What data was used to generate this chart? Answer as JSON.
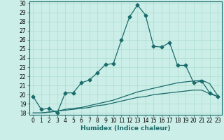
{
  "xlabel": "Humidex (Indice chaleur)",
  "background_color": "#cceee8",
  "grid_color": "#aaddcc",
  "line_color": "#1a6b6b",
  "xlim": [
    -0.5,
    23.5
  ],
  "ylim": [
    17.8,
    30.2
  ],
  "xticks": [
    0,
    1,
    2,
    3,
    4,
    5,
    6,
    7,
    8,
    9,
    10,
    11,
    12,
    13,
    14,
    15,
    16,
    17,
    18,
    19,
    20,
    21,
    22,
    23
  ],
  "yticks": [
    18,
    19,
    20,
    21,
    22,
    23,
    24,
    25,
    26,
    27,
    28,
    29,
    30
  ],
  "series": [
    [
      19.8,
      18.4,
      18.5,
      18.0,
      20.2,
      20.2,
      21.3,
      21.6,
      22.4,
      23.3,
      23.4,
      26.0,
      28.5,
      29.8,
      28.7,
      25.3,
      25.2,
      25.7,
      23.2,
      23.2,
      21.3,
      21.5,
      20.2,
      19.8
    ],
    [
      18.0,
      18.0,
      18.1,
      18.2,
      18.4,
      18.5,
      18.6,
      18.8,
      19.0,
      19.2,
      19.4,
      19.7,
      20.0,
      20.3,
      20.5,
      20.7,
      20.9,
      21.1,
      21.3,
      21.4,
      21.5,
      21.6,
      21.2,
      19.9
    ],
    [
      18.0,
      18.0,
      18.1,
      18.2,
      18.3,
      18.4,
      18.5,
      18.6,
      18.8,
      18.9,
      19.1,
      19.3,
      19.5,
      19.7,
      19.8,
      20.0,
      20.1,
      20.2,
      20.3,
      20.4,
      20.5,
      20.5,
      20.1,
      19.8
    ]
  ],
  "has_markers": [
    true,
    false,
    false
  ],
  "marker": "D",
  "markersize": 2.5,
  "linewidth": 0.9,
  "tick_fontsize": 5.5,
  "xlabel_fontsize": 6.5
}
